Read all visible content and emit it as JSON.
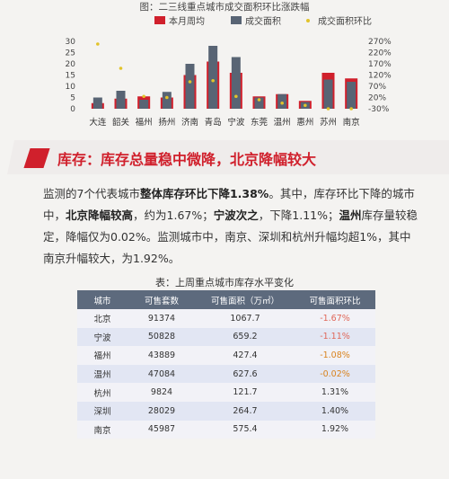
{
  "chart_data": {
    "type": "bar",
    "title": "图：二三线重点城市成交面积环比涨跌幅",
    "legend": [
      "本月周均",
      "成交面积",
      "成交面积环比"
    ],
    "categories": [
      "大连",
      "韶关",
      "福州",
      "扬州",
      "济南",
      "青岛",
      "宁波",
      "东莞",
      "温州",
      "惠州",
      "苏州",
      "南京"
    ],
    "series": [
      {
        "name": "本月周均",
        "values": [
          2.5,
          4.5,
          5.5,
          5,
          15,
          21,
          16,
          5.5,
          6.5,
          3.5,
          16,
          13.5
        ],
        "color": "#d0202c"
      },
      {
        "name": "成交面积",
        "values": [
          5,
          8,
          4,
          7.5,
          20,
          28,
          23,
          5,
          6.5,
          3,
          13,
          12
        ],
        "color": "#586474"
      }
    ],
    "ratio_series": {
      "name": "成交面积环比",
      "values": [
        258,
        150,
        25,
        20,
        90,
        95,
        25,
        10,
        -5,
        -15,
        -30,
        -30
      ],
      "color": "#e2c32a"
    },
    "y_left": {
      "ticks": [
        "0",
        "5",
        "10",
        "15",
        "20",
        "25",
        "30"
      ],
      "min": 0,
      "max": 30
    },
    "y_right": {
      "ticks": [
        "-30%",
        "20%",
        "70%",
        "120%",
        "170%",
        "220%",
        "270%"
      ],
      "min": -30,
      "max": 270
    }
  },
  "section": {
    "title": "库存：库存总量稳中微降，北京降幅较大"
  },
  "paragraph": {
    "p1": "监测的7个代表城市",
    "b1": "整体库存环比下降1.38%",
    "p2": "。其中，库存环比下降的城市中，",
    "b2": "北京降幅较高",
    "p3": "，约为1.67%；",
    "b3": "宁波次之",
    "p4": "，下降1.11%；",
    "b4": "温州",
    "p5": "库存量较稳定，降幅仅为0.02%。监测城市中，南京、深圳和杭州升幅均超1%，其中南京升幅较大，为1.92%。"
  },
  "table": {
    "caption": "表：上周重点城市库存水平变化",
    "headers": [
      "城市",
      "可售套数",
      "可售面积（万㎡）",
      "可售面积环比"
    ],
    "rows": [
      {
        "city": "北京",
        "units": "91374",
        "area": "1067.7",
        "change": "-1.67%",
        "color": "#e0685a"
      },
      {
        "city": "宁波",
        "units": "50828",
        "area": "659.2",
        "change": "-1.11%",
        "color": "#e0685a"
      },
      {
        "city": "福州",
        "units": "43889",
        "area": "427.4",
        "change": "-1.08%",
        "color": "#d9831e"
      },
      {
        "city": "温州",
        "units": "47084",
        "area": "627.6",
        "change": "-0.02%",
        "color": "#d9831e"
      },
      {
        "city": "杭州",
        "units": "9824",
        "area": "121.7",
        "change": "1.31%",
        "color": "#333333"
      },
      {
        "city": "深圳",
        "units": "28029",
        "area": "264.7",
        "change": "1.40%",
        "color": "#333333"
      },
      {
        "city": "南京",
        "units": "45987",
        "area": "575.4",
        "change": "1.92%",
        "color": "#333333"
      }
    ]
  }
}
